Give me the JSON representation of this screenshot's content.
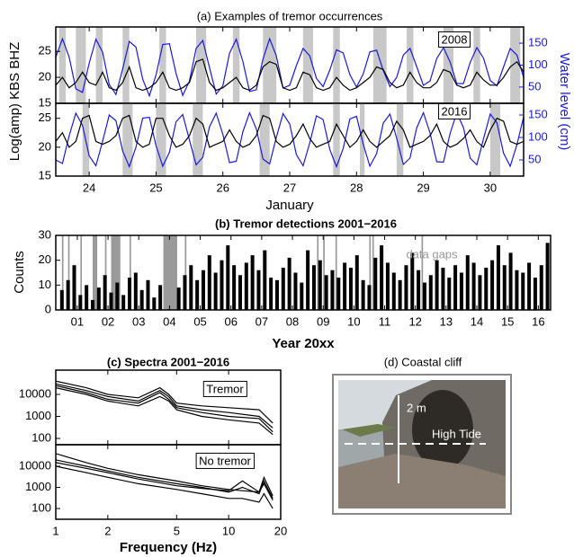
{
  "chart_data": [
    {
      "type": "line",
      "title": "(a) Examples of tremor occurrences",
      "ylabel": "Log(amp) KBS BHZ",
      "y2label": "Water level (cm)",
      "annotation": "2008",
      "x": [
        23.5,
        23.6,
        23.7,
        23.8,
        23.9,
        24.0,
        24.1,
        24.2,
        24.3,
        24.4,
        24.5,
        24.6,
        24.7,
        24.8,
        24.9,
        25.0,
        25.1,
        25.2,
        25.3,
        25.4,
        25.5,
        25.6,
        25.7,
        25.8,
        25.9,
        26.0,
        26.1,
        26.2,
        26.3,
        26.4,
        26.5,
        26.6,
        26.7,
        26.8,
        26.9,
        27.0,
        27.1,
        27.2,
        27.3,
        27.4,
        27.5,
        27.6,
        27.7,
        27.8,
        27.9,
        28.0,
        28.1,
        28.2,
        28.3,
        28.4,
        28.5,
        28.6,
        28.7,
        28.8,
        28.9,
        29.0,
        29.1,
        29.2,
        29.3,
        29.4,
        29.5,
        29.6,
        29.7,
        29.8,
        29.9,
        30.0,
        30.1,
        30.2,
        30.3,
        30.4,
        30.5
      ],
      "xlim": [
        23.5,
        30.5
      ],
      "xticks": [
        24,
        25,
        26,
        27,
        28,
        29,
        30
      ],
      "xtick_labels": false,
      "ylim": [
        15,
        29.7
      ],
      "yticks": [
        15,
        20,
        25
      ],
      "y2lim": [
        13,
        187
      ],
      "y2ticks": [
        50,
        100,
        150
      ],
      "y2color": "#1a1adc",
      "shaded": [
        [
          23.55,
          23.65
        ],
        [
          23.8,
          23.95
        ],
        [
          24.1,
          24.2
        ],
        [
          24.5,
          24.6
        ],
        [
          25.05,
          25.15
        ],
        [
          25.6,
          25.75
        ],
        [
          26.15,
          26.25
        ],
        [
          26.6,
          26.8
        ],
        [
          27.2,
          27.35
        ],
        [
          27.65,
          27.75
        ],
        [
          28.25,
          28.45
        ],
        [
          28.75,
          28.85
        ],
        [
          29.3,
          29.45
        ],
        [
          29.75,
          29.85
        ],
        [
          30.3,
          30.45
        ]
      ],
      "shaded_color": "#c8c8c8",
      "series": [
        {
          "color": "#1a1adc",
          "axis": "y2",
          "values": [
            118,
            160,
            118,
            46,
            38,
            104,
            159,
            130,
            56,
            33,
            91,
            154,
            141,
            68,
            30,
            77,
            147,
            149,
            81,
            31,
            64,
            138,
            156,
            94,
            34,
            53,
            127,
            159,
            108,
            40,
            44,
            114,
            160,
            121,
            48,
            54,
            99,
            138,
            121,
            70,
            51,
            89,
            135,
            128,
            78,
            50,
            80,
            130,
            134,
            88,
            51,
            72,
            123,
            138,
            97,
            54,
            64,
            115,
            140,
            107,
            58,
            58,
            106,
            140,
            116,
            65,
            53,
            96,
            138,
            123,
            72
          ]
        },
        {
          "color": "#000000",
          "values": [
            18.5,
            20,
            18,
            19,
            21,
            19,
            18.5,
            21,
            18,
            17.5,
            19,
            22,
            18,
            17.5,
            18,
            19,
            21,
            18,
            17.5,
            18,
            19,
            23,
            23.5,
            19,
            17.5,
            18,
            19,
            20,
            18,
            17.5,
            18.5,
            22,
            23,
            22.5,
            18,
            17.5,
            18,
            21,
            20.5,
            18,
            17.5,
            18,
            20,
            18.5,
            17.5,
            18,
            19,
            20,
            22,
            21.5,
            19,
            18,
            18.5,
            21,
            19,
            18,
            18,
            19,
            21.5,
            21,
            18.5,
            18,
            18.5,
            21,
            19.5,
            18.5,
            18.5,
            20,
            22,
            23,
            21
          ]
        }
      ]
    },
    {
      "type": "line",
      "xlabel": "January",
      "annotation": "2016",
      "x": [
        23.5,
        23.6,
        23.7,
        23.8,
        23.9,
        24.0,
        24.1,
        24.2,
        24.3,
        24.4,
        24.5,
        24.6,
        24.7,
        24.8,
        24.9,
        25.0,
        25.1,
        25.2,
        25.3,
        25.4,
        25.5,
        25.6,
        25.7,
        25.8,
        25.9,
        26.0,
        26.1,
        26.2,
        26.3,
        26.4,
        26.5,
        26.6,
        26.7,
        26.8,
        26.9,
        27.0,
        27.1,
        27.2,
        27.3,
        27.4,
        27.5,
        27.6,
        27.7,
        27.8,
        27.9,
        28.0,
        28.1,
        28.2,
        28.3,
        28.4,
        28.5,
        28.6,
        28.7,
        28.8,
        28.9,
        29.0,
        29.1,
        29.2,
        29.3,
        29.4,
        29.5,
        29.6,
        29.7,
        29.8,
        29.9,
        30.0,
        30.1,
        30.2,
        30.3,
        30.4,
        30.5
      ],
      "xlim": [
        23.5,
        30.5
      ],
      "xticks": [
        24,
        25,
        26,
        27,
        28,
        29,
        30
      ],
      "xtick_labels": true,
      "ylim": [
        15,
        27.6
      ],
      "yticks": [
        15,
        20,
        25
      ],
      "y2lim": [
        14,
        176
      ],
      "y2ticks": [
        50,
        100,
        150
      ],
      "y2color": "#1a1adc",
      "shaded": [
        [
          23.9,
          24.0
        ],
        [
          24.5,
          24.65
        ],
        [
          25.0,
          25.15
        ],
        [
          25.55,
          25.7
        ],
        [
          26.55,
          26.7
        ],
        [
          27.65,
          27.75
        ],
        [
          28.05,
          28.12
        ],
        [
          28.6,
          28.7
        ],
        [
          30.0,
          30.15
        ]
      ],
      "shaded_color": "#c8c8c8",
      "series": [
        {
          "color": "#1a1adc",
          "axis": "y2",
          "values": [
            50,
            42,
            104,
            154,
            127,
            59,
            37,
            91,
            150,
            137,
            70,
            35,
            78,
            143,
            145,
            82,
            36,
            67,
            135,
            151,
            94,
            39,
            56,
            124,
            154,
            107,
            44,
            47,
            113,
            155,
            119,
            52,
            41,
            100,
            153,
            130,
            62,
            37,
            88,
            148,
            140,
            73,
            35,
            75,
            141,
            147,
            85,
            36,
            64,
            132,
            152,
            98,
            40,
            54,
            121,
            155,
            110,
            46,
            45,
            109,
            155,
            122,
            54,
            39,
            97,
            152,
            133,
            65,
            36,
            84,
            146
          ]
        },
        {
          "color": "#000000",
          "values": [
            21,
            22.5,
            20,
            21,
            25,
            25.5,
            21,
            20.5,
            21,
            22,
            25,
            25.5,
            21,
            20,
            20.5,
            25,
            25,
            22,
            20,
            20.5,
            22,
            25,
            24,
            20,
            20.5,
            21,
            23,
            21,
            20,
            20.5,
            22,
            25.5,
            25,
            21,
            20,
            20.5,
            22,
            24,
            21.5,
            20,
            20.5,
            21,
            24,
            22,
            20,
            21,
            23,
            21,
            20,
            21,
            22,
            24.5,
            23,
            20,
            20.5,
            21,
            22,
            24,
            21,
            20,
            20.5,
            21.5,
            23,
            21,
            20,
            23,
            25,
            24.5,
            21,
            20.5,
            21
          ]
        }
      ]
    },
    {
      "type": "bar",
      "title": "(b) Tremor detections 2001−2016",
      "ylabel": "Counts",
      "xlabel": "Year 20xx",
      "annotation": "data gaps",
      "color": "#000000",
      "x": [
        2001.0,
        2001.2,
        2001.4,
        2001.6,
        2001.8,
        2002.0,
        2002.2,
        2002.4,
        2002.6,
        2002.8,
        2003.0,
        2003.2,
        2003.4,
        2003.6,
        2003.8,
        2004.0,
        2004.2,
        2004.4,
        2004.6,
        2004.8,
        2005.0,
        2005.2,
        2005.4,
        2005.6,
        2005.8,
        2006.0,
        2006.2,
        2006.4,
        2006.6,
        2006.8,
        2007.0,
        2007.2,
        2007.4,
        2007.6,
        2007.8,
        2008.0,
        2008.2,
        2008.4,
        2008.6,
        2008.8,
        2009.0,
        2009.2,
        2009.4,
        2009.6,
        2009.8,
        2010.0,
        2010.2,
        2010.4,
        2010.6,
        2010.8,
        2011.0,
        2011.2,
        2011.4,
        2011.6,
        2011.8,
        2012.0,
        2012.2,
        2012.4,
        2012.6,
        2012.8,
        2013.0,
        2013.2,
        2013.4,
        2013.6,
        2013.8,
        2014.0,
        2014.2,
        2014.4,
        2014.6,
        2014.8,
        2015.0,
        2015.2,
        2015.4,
        2015.6,
        2015.8,
        2016.0,
        2016.2,
        2016.4,
        2016.6,
        2016.8
      ],
      "values": [
        8,
        12,
        18,
        6,
        10,
        4,
        9,
        14,
        7,
        11,
        6,
        13,
        15,
        8,
        12,
        5,
        10,
        0,
        0,
        9,
        14,
        18,
        12,
        16,
        22,
        15,
        20,
        26,
        18,
        14,
        19,
        22,
        16,
        24,
        13,
        12,
        17,
        21,
        15,
        11,
        24,
        18,
        20,
        14,
        16,
        13,
        19,
        17,
        22,
        12,
        10,
        21,
        26,
        19,
        15,
        12,
        18,
        23,
        16,
        11,
        14,
        20,
        17,
        13,
        18,
        15,
        22,
        19,
        14,
        17,
        20,
        26,
        18,
        23,
        16,
        15,
        19,
        13,
        18,
        27
      ],
      "xlim": [
        2000.8,
        2016.9
      ],
      "xticks": [
        {
          "value": 2001.5,
          "label": "01"
        },
        {
          "value": 2002.5,
          "label": "02"
        },
        {
          "value": 2003.5,
          "label": "03"
        },
        {
          "value": 2004.5,
          "label": "04"
        },
        {
          "value": 2005.5,
          "label": "05"
        },
        {
          "value": 2006.5,
          "label": "06"
        },
        {
          "value": 2007.5,
          "label": "07"
        },
        {
          "value": 2008.5,
          "label": "08"
        },
        {
          "value": 2009.5,
          "label": "09"
        },
        {
          "value": 2010.5,
          "label": "10"
        },
        {
          "value": 2011.5,
          "label": "11"
        },
        {
          "value": 2012.5,
          "label": "12"
        },
        {
          "value": 2013.5,
          "label": "13"
        },
        {
          "value": 2014.5,
          "label": "14"
        },
        {
          "value": 2015.5,
          "label": "15"
        },
        {
          "value": 2016.5,
          "label": "16"
        }
      ],
      "xtick_labels": true,
      "ylim": [
        0,
        30
      ],
      "yticks": [
        0,
        10,
        20,
        30
      ],
      "shaded": [
        [
          2001.0,
          2001.05
        ],
        [
          2001.2,
          2001.25
        ],
        [
          2001.6,
          2001.65
        ],
        [
          2002.0,
          2002.15
        ],
        [
          2002.4,
          2002.45
        ],
        [
          2002.6,
          2002.9
        ],
        [
          2003.2,
          2003.25
        ],
        [
          2004.3,
          2004.75
        ],
        [
          2005.0,
          2005.05
        ],
        [
          2009.3,
          2009.35
        ],
        [
          2009.5,
          2009.55
        ],
        [
          2009.9,
          2009.95
        ],
        [
          2011.0,
          2011.05
        ],
        [
          2011.1,
          2011.15
        ],
        [
          2012.7,
          2012.75
        ]
      ],
      "shaded_color": "#9a9a9a"
    },
    {
      "type": "line",
      "title": "(c) Spectra 2001−2016",
      "annotation": "Tremor",
      "xscale": "log",
      "yscale": "log",
      "x": [
        1,
        1.5,
        2,
        3,
        4,
        4.5,
        5,
        7,
        10,
        15,
        18
      ],
      "xlim": [
        1,
        20
      ],
      "xticks": [
        1,
        2,
        5,
        10,
        20
      ],
      "xtick_labels": false,
      "ylim": [
        52,
        126000
      ],
      "yticks": [
        100,
        1000,
        10000
      ],
      "series": [
        {
          "color": "#000000",
          "values": [
            30000,
            15000,
            8000,
            5000,
            15000,
            8000,
            3000,
            2000,
            1500,
            1000,
            300
          ]
        },
        {
          "color": "#000000",
          "values": [
            20000,
            10000,
            5000,
            3000,
            8000,
            5000,
            2000,
            1000,
            700,
            500,
            150
          ]
        },
        {
          "color": "#000000",
          "values": [
            40000,
            20000,
            10000,
            7000,
            20000,
            10000,
            4000,
            3000,
            2500,
            2000,
            500
          ]
        },
        {
          "color": "#000000",
          "values": [
            25000,
            12000,
            6000,
            4000,
            12000,
            6000,
            2500,
            1500,
            1000,
            800,
            200
          ]
        }
      ]
    },
    {
      "type": "line",
      "xlabel": "Frequency (Hz)",
      "annotation": "No tremor",
      "xscale": "log",
      "yscale": "log",
      "x": [
        1,
        1.5,
        2,
        3,
        5,
        7,
        10,
        12,
        15,
        16,
        18
      ],
      "xlim": [
        1,
        20
      ],
      "xticks": [
        1,
        2,
        5,
        10,
        20
      ],
      "xtick_labels": true,
      "ylim": [
        31,
        105000
      ],
      "yticks": [
        100,
        1000,
        10000
      ],
      "series": [
        {
          "color": "#000000",
          "values": [
            20000,
            10000,
            6000,
            3000,
            1500,
            1000,
            600,
            1000,
            500,
            2000,
            300
          ]
        },
        {
          "color": "#000000",
          "values": [
            40000,
            15000,
            8000,
            4000,
            2000,
            1200,
            800,
            700,
            600,
            3000,
            400
          ]
        },
        {
          "color": "#000000",
          "values": [
            10000,
            5000,
            3000,
            1500,
            800,
            500,
            300,
            300,
            200,
            500,
            100
          ]
        },
        {
          "color": "#000000",
          "values": [
            15000,
            8000,
            5000,
            2500,
            1200,
            900,
            700,
            2000,
            600,
            1500,
            250
          ]
        }
      ]
    }
  ],
  "photo": {
    "title": "(d) Coastal cliff",
    "scale_label": "2 m",
    "tide_label": "High Tide"
  }
}
